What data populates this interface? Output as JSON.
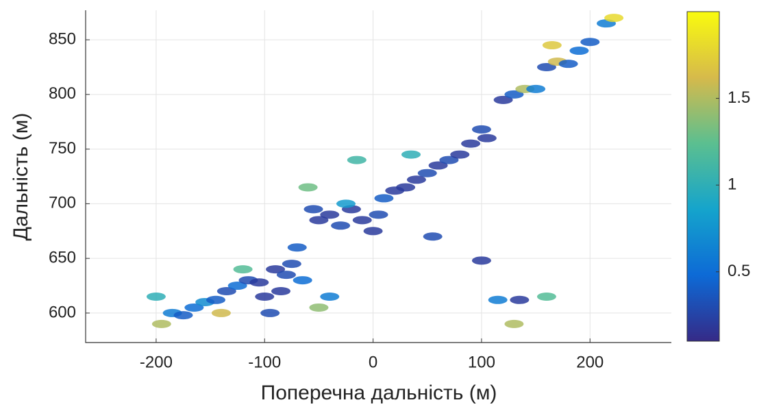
{
  "chart_data": {
    "type": "scatter",
    "xlabel": "Поперечна дальність (м)",
    "ylabel": "Дальність (м)",
    "xlim": [
      -265,
      275
    ],
    "ylim": [
      573,
      877
    ],
    "xticks": [
      -200,
      -100,
      0,
      100,
      200
    ],
    "yticks": [
      600,
      650,
      700,
      750,
      800,
      850
    ],
    "grid": true,
    "clim": [
      0.1,
      2.0
    ],
    "cticks": [
      0.5,
      1,
      1.5
    ],
    "colormap": [
      "#352a87",
      "#0d6ad6",
      "#15a4cc",
      "#5bbf90",
      "#d6ba4b",
      "#f9fb0e"
    ],
    "x": [
      -200,
      -195,
      -185,
      -175,
      -165,
      -155,
      -145,
      -135,
      -125,
      -115,
      -105,
      -100,
      -95,
      -90,
      -85,
      -80,
      -75,
      -70,
      -65,
      -120,
      -140,
      -50,
      -40,
      -55,
      -50,
      -40,
      -30,
      -20,
      -10,
      0,
      5,
      -25,
      10,
      20,
      30,
      40,
      50,
      60,
      70,
      80,
      90,
      100,
      105,
      -60,
      -15,
      35,
      55,
      100,
      135,
      115,
      160,
      130,
      120,
      130,
      140,
      150,
      160,
      170,
      180,
      190,
      200,
      215,
      222,
      165
    ],
    "y": [
      615,
      590,
      600,
      598,
      605,
      610,
      612,
      620,
      625,
      630,
      628,
      615,
      600,
      640,
      620,
      635,
      645,
      660,
      630,
      640,
      600,
      605,
      615,
      695,
      685,
      690,
      680,
      695,
      685,
      675,
      690,
      700,
      705,
      712,
      715,
      722,
      728,
      735,
      740,
      745,
      755,
      768,
      760,
      715,
      740,
      745,
      670,
      648,
      612,
      612,
      615,
      590,
      795,
      800,
      805,
      805,
      825,
      830,
      828,
      840,
      848,
      865,
      870,
      845
    ],
    "values": [
      1.0,
      1.5,
      0.6,
      0.4,
      0.5,
      0.7,
      0.4,
      0.3,
      0.5,
      0.3,
      0.2,
      0.2,
      0.3,
      0.2,
      0.2,
      0.3,
      0.3,
      0.4,
      0.5,
      1.2,
      1.6,
      1.4,
      0.6,
      0.3,
      0.2,
      0.2,
      0.3,
      0.2,
      0.2,
      0.2,
      0.3,
      0.8,
      0.4,
      0.2,
      0.2,
      0.2,
      0.3,
      0.2,
      0.3,
      0.2,
      0.2,
      0.3,
      0.2,
      1.3,
      1.1,
      1.0,
      0.3,
      0.2,
      0.2,
      0.6,
      1.2,
      1.5,
      0.2,
      0.4,
      1.5,
      0.6,
      0.3,
      1.6,
      0.4,
      0.5,
      0.4,
      0.6,
      1.8,
      1.7
    ]
  }
}
